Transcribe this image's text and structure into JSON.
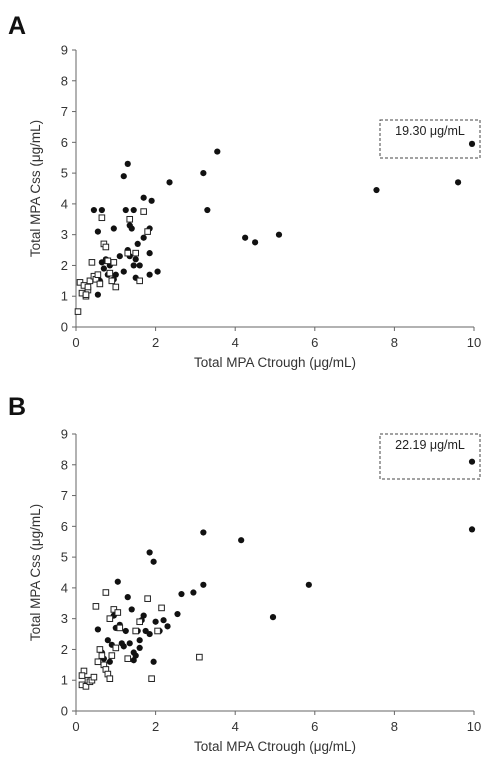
{
  "chart_data": [
    {
      "panel_label": "A",
      "type": "scatter",
      "xlabel": "Total MPA Ctrough (μg/mL)",
      "ylabel": "Total MPA Css (μg/mL)",
      "xlim": [
        0,
        10
      ],
      "ylim": [
        0,
        9
      ],
      "xticks": [
        "0",
        "2",
        "4",
        "6",
        "8",
        "10"
      ],
      "yticks": [
        "0",
        "1",
        "2",
        "3",
        "4",
        "5",
        "6",
        "7",
        "8",
        "9"
      ],
      "grid": false,
      "legend": "none",
      "annotation": "19.30 μg/mL",
      "series": [
        {
          "marker": "filled-circle",
          "points": [
            [
              0.45,
              3.8
            ],
            [
              0.55,
              3.1
            ],
            [
              0.65,
              3.8
            ],
            [
              0.65,
              2.1
            ],
            [
              0.7,
              1.9
            ],
            [
              0.75,
              2.2
            ],
            [
              0.8,
              1.7
            ],
            [
              0.85,
              2.0
            ],
            [
              0.6,
              1.5
            ],
            [
              0.55,
              1.05
            ],
            [
              0.95,
              3.2
            ],
            [
              1.0,
              1.7
            ],
            [
              1.1,
              2.3
            ],
            [
              1.2,
              4.9
            ],
            [
              1.25,
              3.8
            ],
            [
              1.3,
              5.3
            ],
            [
              1.35,
              3.3
            ],
            [
              1.4,
              3.2
            ],
            [
              1.45,
              3.8
            ],
            [
              1.3,
              2.5
            ],
            [
              1.35,
              2.3
            ],
            [
              1.5,
              2.2
            ],
            [
              1.6,
              2.0
            ],
            [
              1.7,
              2.9
            ],
            [
              1.7,
              4.2
            ],
            [
              1.85,
              3.2
            ],
            [
              1.85,
              2.4
            ],
            [
              1.9,
              4.1
            ],
            [
              1.85,
              1.7
            ],
            [
              2.05,
              1.8
            ],
            [
              2.35,
              4.7
            ],
            [
              3.2,
              5.0
            ],
            [
              3.3,
              3.8
            ],
            [
              3.55,
              5.7
            ],
            [
              4.25,
              2.9
            ],
            [
              4.5,
              2.75
            ],
            [
              5.1,
              3.0
            ],
            [
              7.55,
              4.45
            ],
            [
              9.6,
              4.7
            ],
            [
              9.95,
              5.95
            ],
            [
              1.45,
              2.0
            ],
            [
              1.5,
              1.6
            ],
            [
              1.2,
              1.8
            ],
            [
              0.95,
              1.55
            ],
            [
              1.55,
              2.7
            ]
          ]
        },
        {
          "marker": "open-square",
          "points": [
            [
              0.05,
              0.5
            ],
            [
              0.1,
              1.45
            ],
            [
              0.15,
              1.1
            ],
            [
              0.2,
              1.35
            ],
            [
              0.25,
              1.0
            ],
            [
              0.3,
              1.2
            ],
            [
              0.35,
              1.5
            ],
            [
              0.4,
              2.1
            ],
            [
              0.45,
              1.65
            ],
            [
              0.5,
              1.55
            ],
            [
              0.55,
              1.7
            ],
            [
              0.6,
              1.4
            ],
            [
              0.65,
              3.55
            ],
            [
              0.7,
              2.7
            ],
            [
              0.75,
              2.6
            ],
            [
              0.8,
              2.15
            ],
            [
              0.85,
              1.75
            ],
            [
              0.9,
              1.5
            ],
            [
              0.95,
              2.1
            ],
            [
              1.0,
              1.3
            ],
            [
              1.3,
              2.4
            ],
            [
              1.35,
              3.5
            ],
            [
              1.5,
              2.4
            ],
            [
              1.6,
              1.5
            ],
            [
              1.7,
              3.75
            ],
            [
              1.8,
              3.1
            ],
            [
              0.3,
              1.3
            ],
            [
              0.25,
              1.05
            ]
          ]
        }
      ]
    },
    {
      "panel_label": "B",
      "type": "scatter",
      "xlabel": "Total MPA Ctrough (μg/mL)",
      "ylabel": "Total MPA Css (μg/mL)",
      "xlim": [
        0,
        10
      ],
      "ylim": [
        0,
        9
      ],
      "xticks": [
        "0",
        "2",
        "4",
        "6",
        "8",
        "10"
      ],
      "yticks": [
        "0",
        "1",
        "2",
        "3",
        "4",
        "5",
        "6",
        "7",
        "8",
        "9"
      ],
      "grid": false,
      "legend": "none",
      "annotation": "22.19 μg/mL",
      "series": [
        {
          "marker": "filled-circle",
          "points": [
            [
              0.55,
              2.65
            ],
            [
              0.65,
              1.9
            ],
            [
              0.7,
              1.7
            ],
            [
              0.8,
              2.3
            ],
            [
              0.85,
              1.6
            ],
            [
              0.9,
              2.15
            ],
            [
              0.95,
              3.1
            ],
            [
              1.0,
              2.7
            ],
            [
              1.05,
              4.2
            ],
            [
              1.1,
              2.8
            ],
            [
              1.2,
              2.1
            ],
            [
              1.25,
              2.6
            ],
            [
              1.3,
              3.7
            ],
            [
              1.35,
              2.2
            ],
            [
              1.4,
              3.3
            ],
            [
              1.45,
              1.9
            ],
            [
              1.5,
              1.8
            ],
            [
              1.55,
              2.6
            ],
            [
              1.6,
              2.3
            ],
            [
              1.65,
              2.95
            ],
            [
              1.7,
              3.1
            ],
            [
              1.75,
              2.6
            ],
            [
              1.85,
              2.5
            ],
            [
              1.85,
              5.15
            ],
            [
              1.95,
              4.85
            ],
            [
              1.95,
              1.6
            ],
            [
              2.0,
              2.9
            ],
            [
              2.1,
              2.6
            ],
            [
              2.2,
              2.95
            ],
            [
              2.3,
              2.75
            ],
            [
              2.55,
              3.15
            ],
            [
              2.65,
              3.8
            ],
            [
              2.95,
              3.85
            ],
            [
              3.2,
              4.1
            ],
            [
              3.2,
              5.8
            ],
            [
              4.15,
              5.55
            ],
            [
              4.95,
              3.05
            ],
            [
              5.85,
              4.1
            ],
            [
              9.95,
              5.9
            ],
            [
              9.95,
              8.1
            ],
            [
              1.45,
              1.65
            ],
            [
              1.15,
              2.2
            ],
            [
              1.6,
              2.05
            ]
          ]
        },
        {
          "marker": "open-square",
          "points": [
            [
              0.15,
              0.85
            ],
            [
              0.2,
              1.3
            ],
            [
              0.25,
              0.8
            ],
            [
              0.3,
              1.0
            ],
            [
              0.35,
              0.95
            ],
            [
              0.4,
              1.0
            ],
            [
              0.45,
              1.1
            ],
            [
              0.5,
              3.4
            ],
            [
              0.55,
              1.6
            ],
            [
              0.6,
              2.0
            ],
            [
              0.65,
              1.8
            ],
            [
              0.7,
              1.5
            ],
            [
              0.75,
              3.85
            ],
            [
              0.75,
              1.35
            ],
            [
              0.8,
              1.2
            ],
            [
              0.85,
              3.0
            ],
            [
              0.9,
              1.8
            ],
            [
              0.95,
              3.3
            ],
            [
              1.0,
              2.05
            ],
            [
              1.05,
              3.2
            ],
            [
              1.1,
              2.7
            ],
            [
              1.3,
              1.7
            ],
            [
              1.5,
              2.6
            ],
            [
              1.6,
              2.9
            ],
            [
              1.8,
              3.65
            ],
            [
              1.9,
              1.05
            ],
            [
              2.05,
              2.6
            ],
            [
              2.15,
              3.35
            ],
            [
              3.1,
              1.75
            ],
            [
              0.15,
              1.15
            ],
            [
              0.85,
              1.05
            ]
          ]
        }
      ]
    }
  ]
}
